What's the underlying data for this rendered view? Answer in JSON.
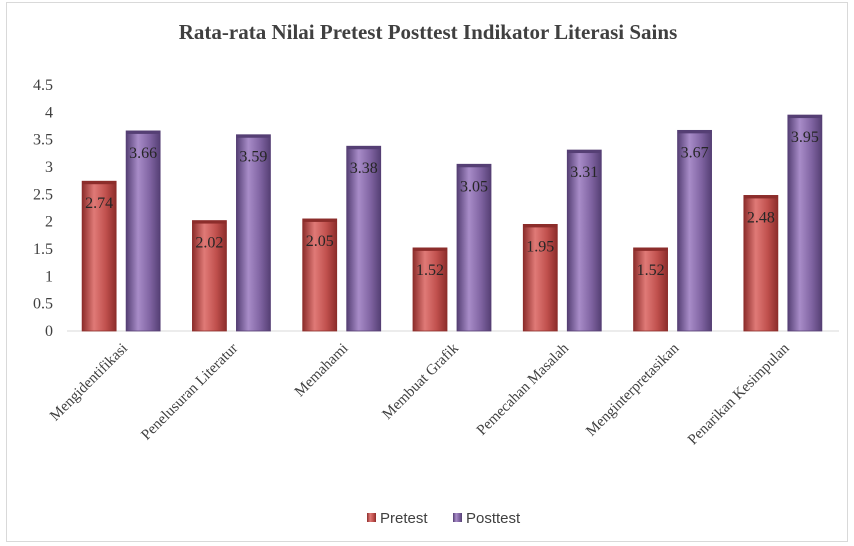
{
  "chart_data": {
    "type": "bar",
    "title": "Rata-rata Nilai Pretest Posttest Indikator Literasi Sains",
    "categories": [
      "Mengidentifikasi",
      "Penelusuran Literatur",
      "Memahami",
      "Membuat Grafik",
      "Pemecahan Masalah",
      "Menginterpretasikan",
      "Penarikan Kesimpulan"
    ],
    "series": [
      {
        "name": "Pretest",
        "values": [
          2.74,
          2.02,
          2.05,
          1.52,
          1.95,
          1.52,
          2.48
        ],
        "color": "#c0504d",
        "dark": "#8c2d2b",
        "light": "#e07a77"
      },
      {
        "name": "Posttest",
        "values": [
          3.66,
          3.59,
          3.38,
          3.05,
          3.31,
          3.67,
          3.95
        ],
        "color": "#8064a2",
        "dark": "#553f74",
        "light": "#a88cc8"
      }
    ],
    "data_labels": [
      [
        "2.74",
        "2.02",
        "2.05",
        "1.52",
        "1.95",
        "1.52",
        "2.48"
      ],
      [
        "3.66",
        "3.59",
        "3.38",
        "3.05",
        "3.31",
        "3.67",
        "3.95"
      ]
    ],
    "yticks": [
      "0",
      "0.5",
      "1",
      "1.5",
      "2",
      "2.5",
      "3",
      "3.5",
      "4",
      "4.5"
    ],
    "ylim": [
      0,
      4.5
    ],
    "grid": false,
    "legend_position": "bottom"
  }
}
